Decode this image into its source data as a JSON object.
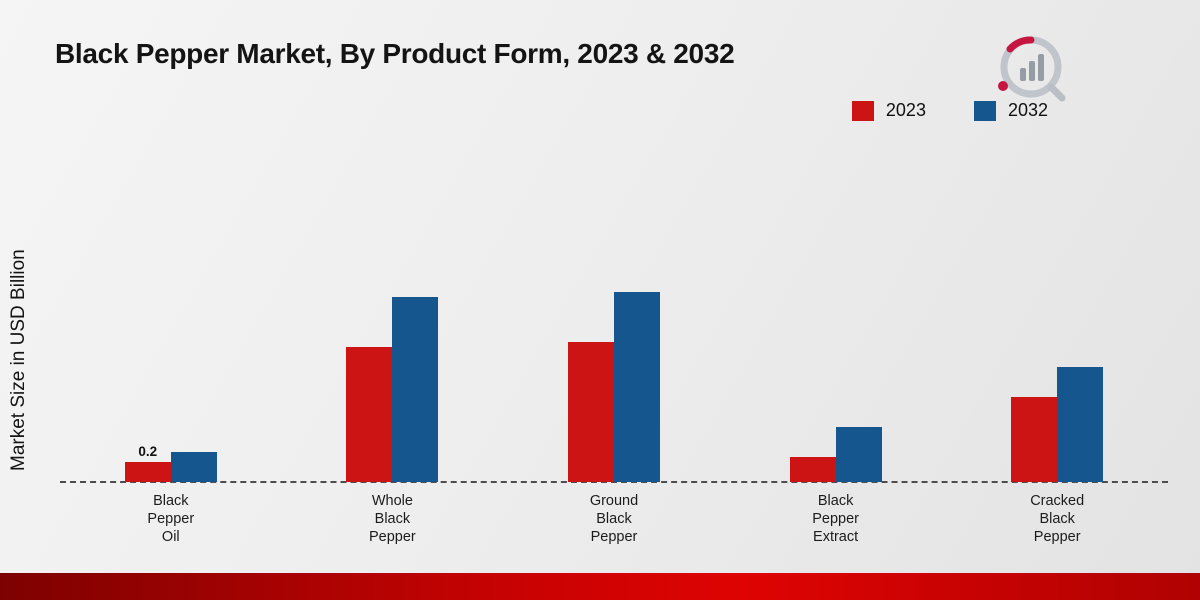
{
  "title": "Black Pepper Market, By Product Form, 2023 & 2032",
  "ylabel": "Market Size in USD Billion",
  "colors": {
    "series_2023": "#cc1414",
    "series_2032": "#15568f",
    "footer_band": "#c40202"
  },
  "chart_data": {
    "type": "bar",
    "categories": [
      "Black Pepper Oil",
      "Whole Black Pepper",
      "Ground Black Pepper",
      "Black Pepper Extract",
      "Cracked Black Pepper"
    ],
    "series": [
      {
        "name": "2023",
        "color": "#cc1414",
        "values": [
          0.2,
          1.35,
          1.4,
          0.25,
          0.85
        ]
      },
      {
        "name": "2032",
        "color": "#15568f",
        "values": [
          0.3,
          1.85,
          1.9,
          0.55,
          1.15
        ]
      }
    ],
    "annotations": [
      {
        "category_index": 0,
        "series_index": 0,
        "text": "0.2"
      }
    ],
    "title": "Black Pepper Market, By Product Form, 2023 & 2032",
    "xlabel": "",
    "ylabel": "Market Size in USD Billion",
    "ylim": [
      0,
      2.0
    ],
    "grid": false,
    "legend_position": "top-right"
  }
}
